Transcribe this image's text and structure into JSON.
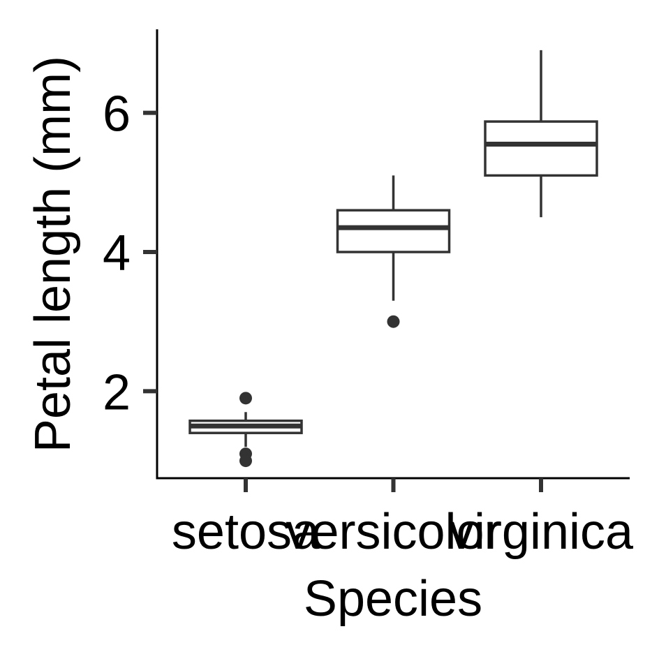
{
  "chart_data": {
    "type": "boxplot",
    "title": "",
    "xlabel": "Species",
    "ylabel": "Petal length (mm)",
    "categories": [
      "setosa",
      "versicolor",
      "virginica"
    ],
    "ylim": [
      0.75,
      7.2
    ],
    "yticks": [
      2,
      4,
      6
    ],
    "grid": false,
    "legend": "none",
    "colors": {
      "box_stroke": "#333333",
      "box_fill": "#ffffff",
      "axis": "#000000",
      "point": "#333333"
    },
    "boxes": [
      {
        "category": "setosa",
        "min": 1.2,
        "q1": 1.4,
        "median": 1.5,
        "q3": 1.575,
        "max": 1.7,
        "outliers": [
          1.9,
          1.1,
          1.0
        ]
      },
      {
        "category": "versicolor",
        "min": 3.3,
        "q1": 4.0,
        "median": 4.35,
        "q3": 4.6,
        "max": 5.1,
        "outliers": [
          3.0
        ]
      },
      {
        "category": "virginica",
        "min": 4.5,
        "q1": 5.1,
        "median": 5.55,
        "q3": 5.875,
        "max": 6.9,
        "outliers": []
      }
    ]
  }
}
